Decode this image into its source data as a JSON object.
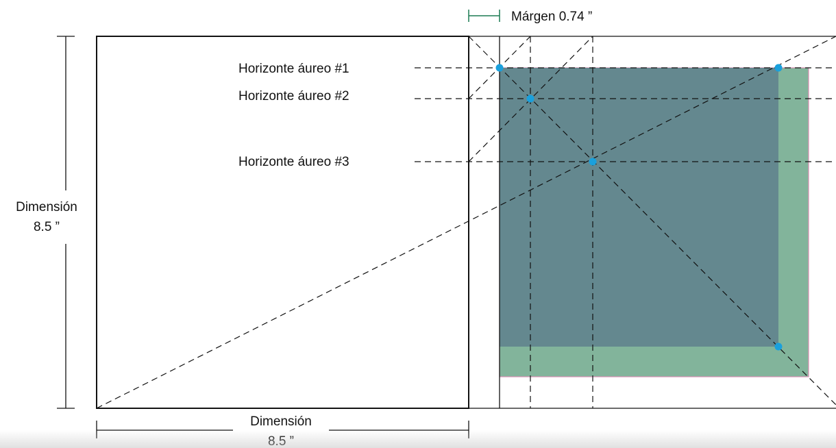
{
  "labels": {
    "margin": "Márgen 0.74 ”",
    "horizon_1": "Horizonte áureo #1",
    "horizon_2": "Horizonte áureo #2",
    "horizon_3": "Horizonte áureo #3",
    "vertical_dimension_title": "Dimensión",
    "vertical_dimension_value": "8.5 ”",
    "horizontal_dimension_title": "Dimensión",
    "horizontal_dimension_value": "8.5 ”"
  },
  "colors": {
    "outer_area": "#82b49b",
    "inner_area": "#64888f",
    "point": "#1aa0dc",
    "margin_marker": "#1b7a52",
    "area_border": "#d88fb4",
    "lines": "#111111"
  }
}
